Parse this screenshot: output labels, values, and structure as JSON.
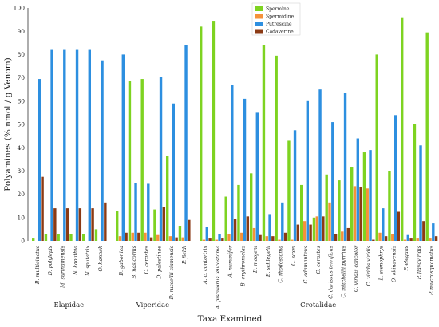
{
  "chart_data": {
    "type": "bar",
    "ylabel": "Polyamines (% nmol / g Venom)",
    "xlabel": "Taxa Examined",
    "ylim": [
      0,
      100
    ],
    "yticks": [
      0,
      10,
      20,
      30,
      40,
      50,
      60,
      70,
      80,
      90,
      100
    ],
    "legend": "top-left",
    "grid": false,
    "categories": [
      "B. multicinctus",
      "D. polylepis",
      "M. surinamensis",
      "N. kaouthia",
      "N. sputatrix",
      "O. hannah",
      "B. gabonica",
      "B. nasicornis",
      "C. cerastes",
      "D. palestinae",
      "D. russellii siamensis",
      "P. fieldi",
      "A. c. contortrix",
      "A. piscivorus leucostoma",
      "A. nummifer",
      "B. erythromelas",
      "B. moojeni",
      "B. schlegelii",
      "C. rhodostoma",
      "C. saxei",
      "C. adamanteus",
      "C. cerastes",
      "C. durissus terrificus",
      "C. mitchellii pyrrhus",
      "C. viridis concolor",
      "C. viridis viridis",
      "L. stenophrys",
      "O. okinavensis",
      "P. elegans",
      "P. flavoviridis",
      "P. mucrosquamatus"
    ],
    "groups": [
      {
        "name": "Elapidae",
        "count": 6
      },
      {
        "name": "Viperidae",
        "count": 6
      },
      {
        "name": "Crotalidae",
        "count": 19
      }
    ],
    "series": [
      {
        "name": "Spermine",
        "color": "#7ED321",
        "values": [
          1,
          3,
          3,
          3,
          3,
          5,
          13,
          68.5,
          69.5,
          13.5,
          36.5,
          6.5,
          92,
          94.5,
          19,
          24,
          29,
          84,
          79.5,
          43,
          24,
          10,
          28.5,
          26,
          31.5,
          38,
          80,
          30,
          96,
          50,
          89.5
        ]
      },
      {
        "name": "Spermidine",
        "color": "#F5913A",
        "values": [
          0,
          0,
          0,
          0,
          0,
          0,
          2,
          3.5,
          3.5,
          2.5,
          2,
          1.5,
          0.5,
          0.5,
          3,
          3.5,
          5.5,
          2,
          0.5,
          0.5,
          8.5,
          10.5,
          16.5,
          4,
          23.5,
          22.5,
          3.5,
          3,
          0.5,
          1,
          1
        ]
      },
      {
        "name": "Putrescine",
        "color": "#2D8FE0",
        "values": [
          69.5,
          82,
          82,
          82,
          82,
          77.5,
          80,
          25,
          24.5,
          70.5,
          59,
          84,
          6,
          3,
          67,
          61,
          55,
          11.5,
          16.5,
          47.5,
          60,
          65,
          51,
          63.5,
          44,
          39,
          14,
          54,
          2.5,
          41,
          7.5
        ]
      },
      {
        "name": "Cadaverine",
        "color": "#8B3A14",
        "values": [
          27.5,
          14,
          14,
          14,
          14,
          16.5,
          3.5,
          3.5,
          1.5,
          14.5,
          1.5,
          9,
          1,
          1,
          9.5,
          10.5,
          2.5,
          2,
          3.5,
          7,
          7,
          10.5,
          3,
          5.5,
          23,
          0.5,
          2,
          12.5,
          1,
          8.5,
          2
        ]
      }
    ]
  }
}
